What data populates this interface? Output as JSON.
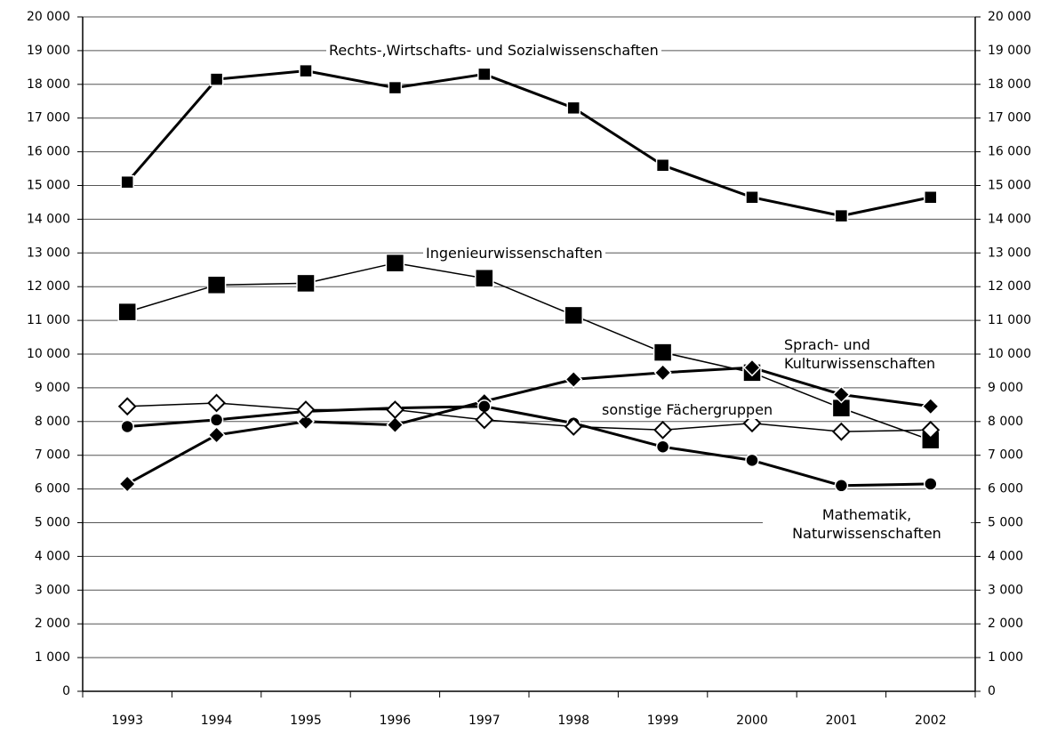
{
  "chart_data": {
    "type": "line",
    "categories": [
      "1993",
      "1994",
      "1995",
      "1996",
      "1997",
      "1998",
      "1999",
      "2000",
      "2001",
      "2002"
    ],
    "ylim": [
      0,
      20000
    ],
    "yticks": [
      {
        "value": 0,
        "label": "0"
      },
      {
        "value": 1000,
        "label": "1 000"
      },
      {
        "value": 2000,
        "label": "2 000"
      },
      {
        "value": 3000,
        "label": "3 000"
      },
      {
        "value": 4000,
        "label": "4 000"
      },
      {
        "value": 5000,
        "label": "5 000"
      },
      {
        "value": 6000,
        "label": "6 000"
      },
      {
        "value": 7000,
        "label": "7 000"
      },
      {
        "value": 8000,
        "label": "8 000"
      },
      {
        "value": 9000,
        "label": "9 000"
      },
      {
        "value": 10000,
        "label": "10 000"
      },
      {
        "value": 11000,
        "label": "11 000"
      },
      {
        "value": 12000,
        "label": "12 000"
      },
      {
        "value": 13000,
        "label": "13 000"
      },
      {
        "value": 14000,
        "label": "14 000"
      },
      {
        "value": 15000,
        "label": "15 000"
      },
      {
        "value": 16000,
        "label": "16 000"
      },
      {
        "value": 17000,
        "label": "17 000"
      },
      {
        "value": 18000,
        "label": "18 000"
      },
      {
        "value": 19000,
        "label": "19 000"
      },
      {
        "value": 20000,
        "label": "20 000"
      }
    ],
    "grid": true,
    "series": [
      {
        "name": "Rechts-,Wirtschafts- und Sozialwissenschaften",
        "color": "#000000",
        "marker": "square",
        "linewidth": 3,
        "values": [
          15100,
          18150,
          18400,
          17900,
          18300,
          17300,
          15600,
          14650,
          14100,
          14650
        ]
      },
      {
        "name": "Ingenieurwissenschaften",
        "color": "#000000",
        "marker": "square-large",
        "linewidth": 1.5,
        "values": [
          11250,
          12050,
          12100,
          12700,
          12250,
          11150,
          10050,
          9450,
          8400,
          7450
        ]
      },
      {
        "name": "Sprach- und Kulturwissenschaften",
        "color": "#000000",
        "marker": "diamond",
        "linewidth": 3,
        "values": [
          6150,
          7600,
          8000,
          7900,
          8600,
          9250,
          9450,
          9600,
          8800,
          8450
        ]
      },
      {
        "name": "Mathematik, Naturwissenschaften",
        "color": "#000000",
        "marker": "circle",
        "linewidth": 3,
        "values": [
          7850,
          8050,
          8300,
          8400,
          8450,
          7950,
          7250,
          6850,
          6100,
          6150
        ]
      },
      {
        "name": "sonstige Fächergruppen",
        "color": "#000000",
        "marker": "diamond-open",
        "linewidth": 1.5,
        "values": [
          8450,
          8550,
          8350,
          8350,
          8050,
          7850,
          7750,
          7950,
          7700,
          7750
        ]
      }
    ]
  }
}
